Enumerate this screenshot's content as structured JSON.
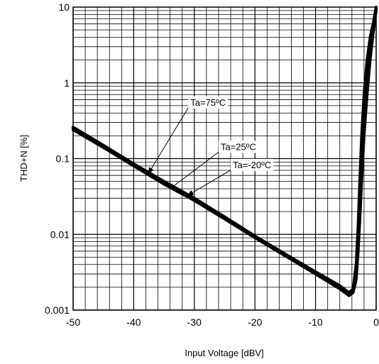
{
  "chart_data": {
    "type": "line",
    "xlabel": "Input Voltage [dBV]",
    "ylabel": "THD+N [%]",
    "xlim": [
      -50,
      0
    ],
    "ylim": [
      0.001,
      10
    ],
    "yscale": "log",
    "grid": true,
    "x_ticks": [
      "-50",
      "-40",
      "-30",
      "-20",
      "-10",
      "0"
    ],
    "y_ticks": [
      "0.001",
      "0.01",
      "0.1",
      "1",
      "10"
    ],
    "series": [
      {
        "name": "Ta=75ºC",
        "x": [
          -50,
          -45,
          -40,
          -35,
          -30,
          -25,
          -20,
          -15,
          -10,
          -6,
          -4.5,
          -3.8,
          -3.3,
          -3,
          -2.7,
          -2.4,
          -2,
          -1.5,
          -1,
          -0.5,
          0
        ],
        "y": [
          0.26,
          0.15,
          0.085,
          0.05,
          0.03,
          0.017,
          0.0095,
          0.0055,
          0.0032,
          0.0021,
          0.0017,
          0.0019,
          0.004,
          0.012,
          0.05,
          0.2,
          0.7,
          2,
          4,
          6,
          10
        ]
      },
      {
        "name": "Ta=25ºC",
        "x": [
          -50,
          -45,
          -40,
          -35,
          -30,
          -25,
          -20,
          -15,
          -10,
          -6,
          -4.5,
          -3.8,
          -3.3,
          -3,
          -2.7,
          -2.4,
          -2,
          -1.5,
          -1,
          -0.5,
          0
        ],
        "y": [
          0.25,
          0.145,
          0.082,
          0.048,
          0.029,
          0.0165,
          0.0092,
          0.0053,
          0.0031,
          0.002,
          0.0016,
          0.0018,
          0.0035,
          0.01,
          0.04,
          0.15,
          0.55,
          1.7,
          3.6,
          5.5,
          9.5
        ]
      },
      {
        "name": "Ta=-20ºC",
        "x": [
          -50,
          -45,
          -40,
          -35,
          -30,
          -25,
          -20,
          -15,
          -10,
          -6,
          -4.5,
          -3.8,
          -3.3,
          -3,
          -2.7,
          -2.4,
          -2,
          -1.5,
          -1,
          -0.5,
          0
        ],
        "y": [
          0.24,
          0.14,
          0.08,
          0.046,
          0.028,
          0.016,
          0.009,
          0.0052,
          0.003,
          0.0019,
          0.00155,
          0.0017,
          0.0025,
          0.0055,
          0.015,
          0.05,
          0.2,
          0.7,
          2,
          4.5,
          9
        ]
      }
    ],
    "annotations": [
      {
        "text": "Ta=75ºC",
        "x": -31,
        "y": 0.5,
        "arrow_to": [
          -37.5,
          0.065
        ]
      },
      {
        "text": "Ta=25ºC",
        "x": -26,
        "y": 0.13,
        "arrow_to": [
          -34,
          0.04
        ]
      },
      {
        "text": "Ta=-20ºC",
        "x": -24,
        "y": 0.075,
        "arrow_to": [
          -31,
          0.033
        ]
      }
    ]
  }
}
